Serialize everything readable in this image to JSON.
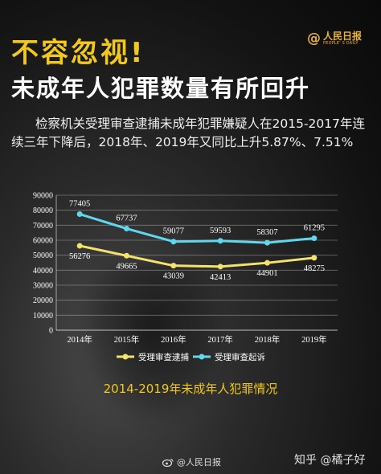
{
  "header": {
    "headline": "不容忽视!",
    "subhead": "未成年人犯罪数量有所回升",
    "logo_main": "人民日报",
    "logo_sub": "PEOPLE' S DAILY",
    "summary": "检察机关受理审查逮捕未成年犯罪嫌疑人在2015-2017年连续三年下降后，2018年、2019年又同比上升5.87%、7.51%"
  },
  "footer": {
    "weibo_source": "@人民日报",
    "zhihu_credit": "知乎 @橘子好"
  },
  "colors": {
    "title_yellow": "#f2c81b",
    "arrest_series": "#f2e36a",
    "prosecution_series": "#5fd8ee"
  },
  "chart_data": {
    "type": "line",
    "title": "2014-2019年未成年人犯罪情况",
    "categories": [
      "2014年",
      "2015年",
      "2016年",
      "2017年",
      "2018年",
      "2019年"
    ],
    "yticks": [
      0,
      10000,
      20000,
      30000,
      40000,
      50000,
      60000,
      70000,
      80000,
      90000
    ],
    "ylim": [
      0,
      90000
    ],
    "grid": true,
    "legend_position": "bottom",
    "series": [
      {
        "name": "受理审查逮捕",
        "values": [
          56276,
          49665,
          43039,
          42413,
          44901,
          48275
        ],
        "color": "#f2e36a",
        "label_position": "below"
      },
      {
        "name": "受理审查起诉",
        "values": [
          77405,
          67737,
          59077,
          59593,
          58307,
          61295
        ],
        "color": "#5fd8ee",
        "label_position": "above"
      }
    ]
  }
}
